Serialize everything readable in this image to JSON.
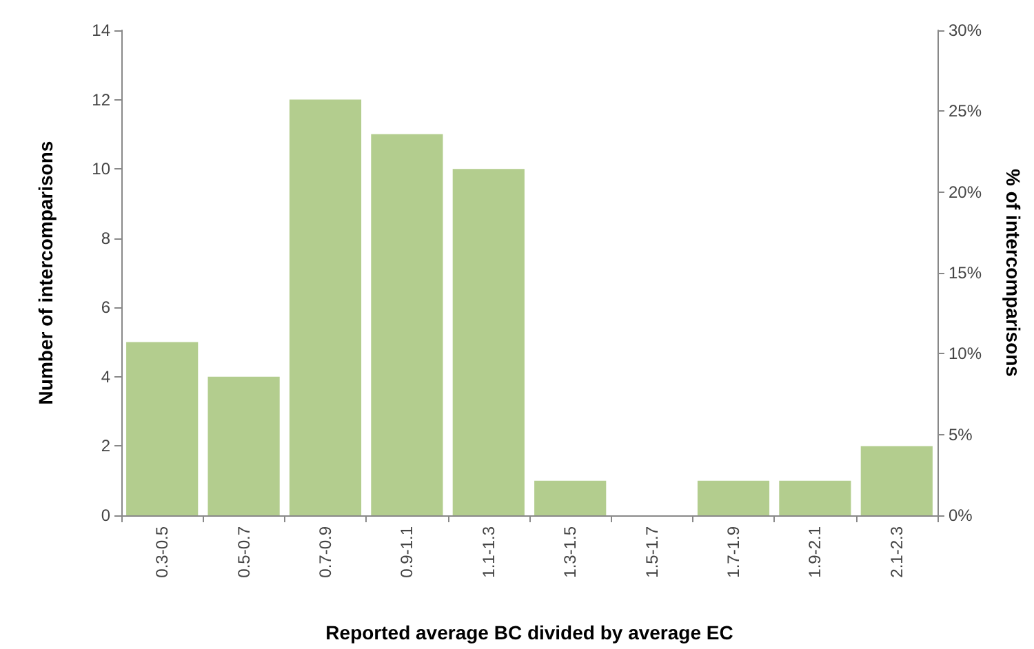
{
  "chart_data": {
    "type": "bar",
    "xlabel": "Reported average BC divided by average EC",
    "ylabel": "Number of intercomparisons",
    "y2label": "% of intercomparisons",
    "categories": [
      "0.3-0.5",
      "0.5-0.7",
      "0.7-0.9",
      "0.9-1.1",
      "1.1-1.3",
      "1.3-1.5",
      "1.5-1.7",
      "1.7-1.9",
      "1.9-2.1",
      "2.1-2.3"
    ],
    "values": [
      5,
      4,
      12,
      11,
      10,
      1,
      0,
      1,
      1,
      2
    ],
    "color": "#b3cd8e",
    "ylim": [
      0,
      14
    ],
    "yticks": [
      0,
      2,
      4,
      6,
      8,
      10,
      12,
      14
    ],
    "y2lim": [
      0,
      30
    ],
    "y2ticks": [
      {
        "value": 0,
        "label": "0%"
      },
      {
        "value": 5,
        "label": "5%"
      },
      {
        "value": 10,
        "label": "10%"
      },
      {
        "value": 15,
        "label": "15%"
      },
      {
        "value": 20,
        "label": "20%"
      },
      {
        "value": 25,
        "label": "25%"
      },
      {
        "value": 30,
        "label": "30%"
      }
    ],
    "grid": false
  }
}
